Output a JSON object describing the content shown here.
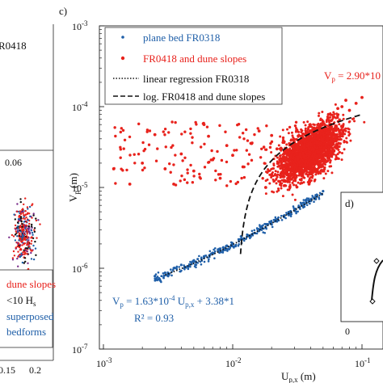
{
  "left_panel": {
    "header_fragment": "R0418",
    "x_tick_top": "0.06",
    "x_tick_labels": [
      "0.15",
      "0.2"
    ],
    "legend_items": [
      {
        "text": "dune slopes",
        "color": "#e8221c"
      },
      {
        "text": "<10 H",
        "sub": "s",
        "color": "#111111"
      },
      {
        "text": "superposed",
        "color": "#1f5fa8"
      },
      {
        "text": "bedforms",
        "color": "#1f5fa8"
      }
    ]
  },
  "panel_c": {
    "panel_label": "c)",
    "ylabel_main": "V",
    "ylabel_sub": "p",
    "ylabel_unit": " (m)",
    "xlabel_main": "U",
    "xlabel_sub": "p,x",
    "xlabel_unit": " (m)",
    "legend": [
      {
        "label": "plane bed FR0318",
        "color": "#1f5fa8",
        "kind": "dot"
      },
      {
        "label": "FR0418 and dune slopes",
        "color": "#e8221c",
        "kind": "dot"
      },
      {
        "label": "linear regression FR0318",
        "color": "#111111",
        "kind": "dotted"
      },
      {
        "label": "log. FR0418 and dune slopes",
        "color": "#111111",
        "kind": "dashed"
      }
    ],
    "eq_red": "V",
    "eq_red_sub": "p",
    "eq_red_rest": " = 2.90*10",
    "eq_blue_line1": "V",
    "eq_blue_sub": "p",
    "eq_blue_mid": " = 1.63*10",
    "eq_blue_exp": "-4",
    "eq_blue_u": " U",
    "eq_blue_usub": "p,x",
    "eq_blue_end": " + 3.38*1",
    "eq_blue_line2": "R² = 0.93",
    "colors": {
      "blue": "#1f5fa8",
      "red": "#e8221c",
      "axis": "#222222"
    }
  },
  "panel_d": {
    "panel_label": "d)",
    "x_tick_label": "0"
  },
  "chart_data": {
    "type": "scatter",
    "xscale": "log",
    "yscale": "log",
    "xlim": [
      0.001,
      0.1
    ],
    "ylim": [
      1e-07,
      0.001
    ],
    "x_ticks": [
      {
        "value": 0.001,
        "base": "10",
        "exp": "-3"
      },
      {
        "value": 0.01,
        "base": "10",
        "exp": "-2"
      },
      {
        "value": 0.1,
        "base": "10",
        "exp": "-1"
      }
    ],
    "y_ticks": [
      {
        "value": 1e-07,
        "base": "10",
        "exp": "-7"
      },
      {
        "value": 1e-06,
        "base": "10",
        "exp": "-6"
      },
      {
        "value": 1e-05,
        "base": "10",
        "exp": "-5"
      },
      {
        "value": 0.0001,
        "base": "10",
        "exp": "-4"
      },
      {
        "value": 0.001,
        "base": "10",
        "exp": "-3"
      }
    ],
    "series": [
      {
        "name": "plane bed FR0318",
        "color": "#1f5fa8",
        "points": [
          [
            0.0025,
            8e-07
          ],
          [
            0.003,
            8.8e-07
          ],
          [
            0.0035,
            1e-06
          ],
          [
            0.004,
            1.1e-06
          ],
          [
            0.005,
            1.25e-06
          ],
          [
            0.006,
            1.4e-06
          ],
          [
            0.007,
            1.55e-06
          ],
          [
            0.008,
            1.75e-06
          ],
          [
            0.009,
            1.9e-06
          ],
          [
            0.01,
            2e-06
          ],
          [
            0.012,
            2.3e-06
          ],
          [
            0.014,
            2.6e-06
          ],
          [
            0.016,
            2.9e-06
          ],
          [
            0.018,
            3.2e-06
          ],
          [
            0.02,
            3.5e-06
          ],
          [
            0.022,
            3.8e-06
          ],
          [
            0.025,
            4.3e-06
          ],
          [
            0.028,
            4.8e-06
          ],
          [
            0.03,
            5.2e-06
          ],
          [
            0.033,
            5.7e-06
          ],
          [
            0.036,
            6.2e-06
          ],
          [
            0.04,
            7e-06
          ],
          [
            0.045,
            8e-06
          ],
          [
            0.05,
            9e-06
          ]
        ]
      },
      {
        "name": "FR0418 and dune slopes",
        "color": "#e8221c",
        "points": [
          [
            0.0012,
            1.7e-05
          ],
          [
            0.0016,
            1.1e-05
          ],
          [
            0.002,
            2e-05
          ],
          [
            0.0025,
            4.5e-05
          ],
          [
            0.003,
            1.7e-05
          ],
          [
            0.0035,
            1.1e-05
          ],
          [
            0.004,
            2.6e-05
          ],
          [
            0.005,
            1.6e-05
          ],
          [
            0.006,
            6e-05
          ],
          [
            0.0065,
            4.3e-05
          ],
          [
            0.007,
            2.2e-05
          ],
          [
            0.008,
            1.3e-05
          ],
          [
            0.009,
            3.3e-05
          ],
          [
            0.01,
            2.5e-05
          ],
          [
            0.012,
            1.8e-05
          ],
          [
            0.014,
            3.5e-05
          ],
          [
            0.016,
            5e-05
          ],
          [
            0.018,
            1e-05
          ],
          [
            0.02,
            4.4e-05
          ],
          [
            0.022,
            3e-05
          ],
          [
            0.025,
            1.5e-05
          ],
          [
            0.028,
            2e-05
          ],
          [
            0.03,
            3.4e-05
          ],
          [
            0.035,
            4.6e-05
          ],
          [
            0.04,
            3.8e-05
          ],
          [
            0.045,
            5.5e-05
          ],
          [
            0.05,
            6.5e-05
          ],
          [
            0.055,
            8e-05
          ],
          [
            0.06,
            7.5e-05
          ],
          [
            0.065,
            9.5e-05
          ],
          [
            0.07,
            0.0001
          ],
          [
            0.075,
            0.00012
          ],
          [
            0.08,
            9e-05
          ],
          [
            0.09,
            0.00011
          ],
          [
            0.1,
            0.00013
          ]
        ]
      }
    ],
    "regressions": [
      {
        "name": "linear regression FR0318",
        "style": "dotted",
        "kind": "linear",
        "slope": 0.000163,
        "intercept": 3.38e-07,
        "x_range": [
          0.003,
          0.05
        ]
      },
      {
        "name": "log. FR0418 and dune slopes",
        "style": "dashed",
        "kind": "log",
        "x_range": [
          0.0115,
          0.1
        ],
        "y_range": [
          1.5e-06,
          8e-05
        ]
      }
    ]
  }
}
